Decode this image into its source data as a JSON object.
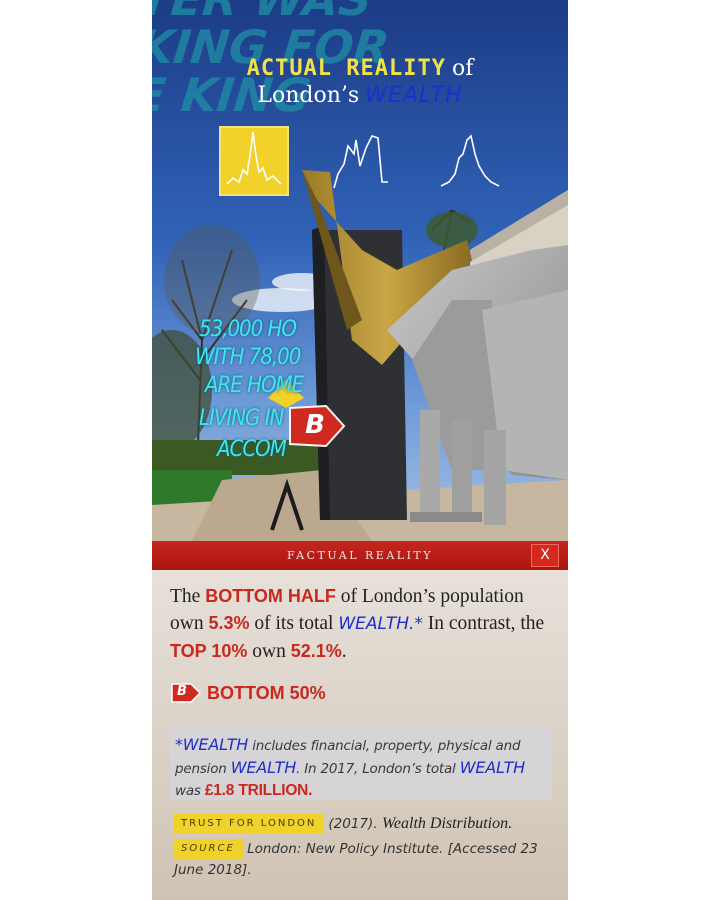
{
  "ar_scene": {
    "bg_lines": [
      "YER WAS",
      "KING FOR",
      "E KING"
    ],
    "title_line1": "ACTUAL REALITY",
    "title_of": "of",
    "title_london": "London’s",
    "title_wealth": "WEALTH",
    "ar_lines": [
      "53,000 HO",
      "WITH 78,00",
      "ARE HOME",
      "LIVING IN",
      "ACCOM"
    ],
    "marker_letter": "B",
    "chart_buttons": [
      {
        "icon": "spike-line-chart-icon",
        "active": true
      },
      {
        "icon": "castle-line-chart-icon",
        "active": false
      },
      {
        "icon": "peak-line-chart-icon",
        "active": false
      }
    ]
  },
  "panel": {
    "title": "FACTUAL REALITY",
    "close_label": "X",
    "fact": {
      "p1": "The ",
      "bottom_half": "BOTTOM HALF",
      "p2": " of London’s population own ",
      "pct_bottom": "5.3%",
      "p3": " of its total ",
      "wealth": "WEALTH.*",
      "p4": " In contrast, the ",
      "top10": "TOP 10%",
      "p5": " own ",
      "pct_top": "52.1%",
      "p6": "."
    },
    "legend": {
      "badge": "B",
      "label": "BOTTOM 50%"
    },
    "note": {
      "w1": "*WEALTH",
      "t1": " includes financial, property, physical and pension ",
      "w2": "WEALTH",
      "t2": ". In 2017, London’s total ",
      "w3": "WEALTH",
      "t3": " was ",
      "amount": "£1.8 TRILLION."
    },
    "references": {
      "tag1": "TRUST FOR LONDON",
      "year": "(2017).",
      "work_title": "Wealth Distribution.",
      "tag2": "SOURCE",
      "source_text": "London: New Policy Institute. [Accessed 23 June 2018]."
    }
  },
  "colors": {
    "accent_red": "#c8281e",
    "accent_blue": "#1d2fc7",
    "accent_yellow": "#f2d12a",
    "ar_cyan": "#3fe6f0"
  }
}
